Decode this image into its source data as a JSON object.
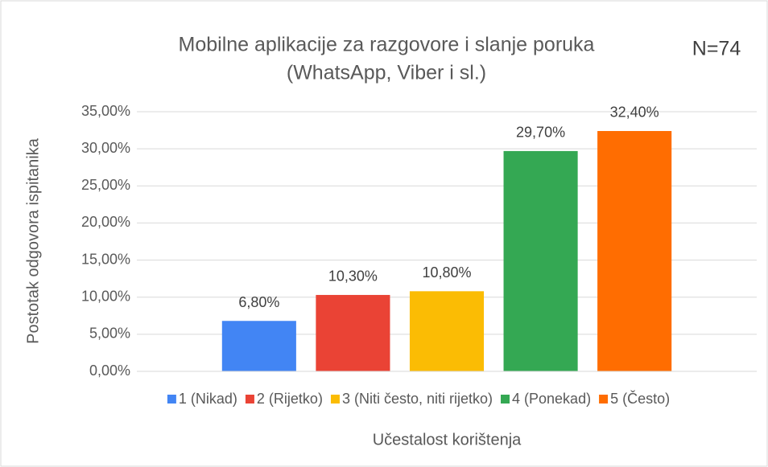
{
  "chart_data": {
    "type": "bar",
    "title": [
      "Mobilne aplikacije za razgovore i slanje poruka",
      "(WhatsApp, Viber i sl.)"
    ],
    "annotation": "N=74",
    "y_label": "Postotak odgovora ispitanika",
    "x_label": "Učestalost korištenja",
    "categories": [
      null
    ],
    "series": [
      {
        "name": "1 (Nikad)",
        "color": "#4285f4",
        "values": [
          6.8
        ],
        "value_labels": [
          "6,80%"
        ]
      },
      {
        "name": "2 (Rijetko)",
        "color": "#ea4335",
        "values": [
          10.3
        ],
        "value_labels": [
          "10,30%"
        ]
      },
      {
        "name": "3 (Niti često, niti rijetko)",
        "color": "#fbbc04",
        "values": [
          10.8
        ],
        "value_labels": [
          "10,80%"
        ]
      },
      {
        "name": "4 (Ponekad)",
        "color": "#34a853",
        "values": [
          29.7
        ],
        "value_labels": [
          "29,70%"
        ]
      },
      {
        "name": "5 (Često)",
        "color": "#ff6d01",
        "values": [
          32.4
        ],
        "value_labels": [
          "32,40%"
        ]
      }
    ],
    "ylim": [
      0,
      35
    ],
    "yticks": [
      {
        "value": 0,
        "label": "0,00%"
      },
      {
        "value": 5,
        "label": "5,00%"
      },
      {
        "value": 10,
        "label": "10,00%"
      },
      {
        "value": 15,
        "label": "15,00%"
      },
      {
        "value": 20,
        "label": "20,00%"
      },
      {
        "value": 25,
        "label": "25,00%"
      },
      {
        "value": 30,
        "label": "30,00%"
      },
      {
        "value": 35,
        "label": "35,00%"
      }
    ],
    "grid": true,
    "legend": "bottom"
  }
}
